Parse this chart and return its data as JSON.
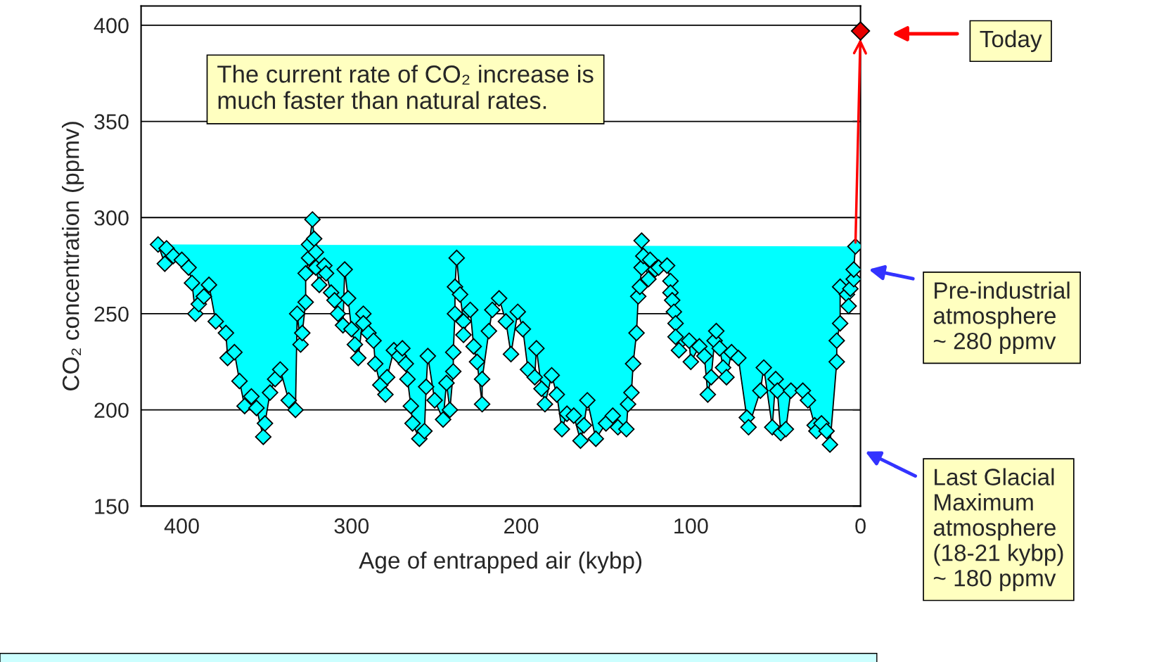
{
  "chart_data": {
    "type": "line",
    "xlabel": "Age of entrapped air (kybp)",
    "ylabel": "CO₂ concentration (ppmv)",
    "xlim": [
      424,
      0
    ],
    "xticks": [
      400,
      300,
      200,
      100,
      0
    ],
    "ylim": [
      150,
      410
    ],
    "yticks": [
      150,
      200,
      250,
      300,
      350,
      400
    ],
    "grid": "y",
    "marker": "diamond",
    "series": [
      {
        "color": "#00ffff",
        "x": [
          414,
          410,
          409,
          405,
          400,
          396,
          394,
          392,
          390,
          387,
          384,
          380,
          374,
          373,
          369,
          366,
          363,
          359,
          356,
          352,
          351,
          348,
          345,
          342,
          337,
          333,
          332,
          330,
          329,
          327,
          327,
          325,
          325,
          323,
          322,
          321,
          321,
          319,
          316,
          315,
          312,
          310,
          308,
          305,
          304,
          302,
          300,
          298,
          296,
          293,
          293,
          290,
          287,
          286,
          283,
          280,
          279,
          275,
          272,
          270,
          268,
          267,
          265,
          264,
          260,
          257,
          256,
          255,
          251,
          246,
          244,
          242,
          240,
          240,
          239,
          239,
          238,
          236,
          234,
          234,
          230,
          228,
          226,
          223,
          223,
          219,
          217,
          213,
          209,
          206,
          202,
          199,
          196,
          192,
          191,
          188,
          186,
          182,
          179,
          176,
          173,
          169,
          165,
          163,
          161,
          156,
          150,
          146,
          143,
          138,
          137,
          135,
          134,
          132,
          131,
          130,
          129,
          129,
          128,
          125,
          124,
          121,
          119,
          114,
          112,
          112,
          111,
          110,
          109,
          109,
          107,
          101,
          100,
          95,
          92,
          90,
          88,
          86,
          85,
          83,
          81,
          79,
          76,
          72,
          67,
          66,
          59,
          57,
          52,
          50,
          49,
          47,
          44,
          41,
          34,
          31,
          27,
          26,
          23,
          20,
          18,
          14,
          14,
          12,
          12,
          8,
          7,
          6,
          4,
          4,
          3
        ],
        "values": [
          286,
          276,
          284,
          280,
          278,
          274,
          266,
          250,
          255,
          259,
          265,
          246,
          240,
          227,
          230,
          215,
          202,
          207,
          201,
          186,
          193,
          209,
          216,
          221,
          205,
          200,
          250,
          234,
          240,
          256,
          271,
          279,
          286,
          299,
          289,
          282,
          274,
          265,
          275,
          271,
          261,
          257,
          250,
          244,
          273,
          258,
          242,
          234,
          227,
          250,
          245,
          240,
          236,
          224,
          213,
          208,
          217,
          231,
          228,
          232,
          224,
          216,
          202,
          193,
          185,
          189,
          212,
          228,
          205,
          195,
          214,
          200,
          220,
          230,
          250,
          264,
          279,
          260,
          246,
          239,
          252,
          233,
          225,
          203,
          216,
          241,
          252,
          258,
          246,
          229,
          251,
          242,
          221,
          217,
          232,
          211,
          203,
          218,
          208,
          190,
          198,
          197,
          184,
          192,
          205,
          185,
          193,
          197,
          191,
          190,
          203,
          209,
          224,
          240,
          259,
          264,
          274,
          288,
          280,
          268,
          278,
          273,
          274,
          275,
          267,
          261,
          257,
          251,
          245,
          238,
          231,
          236,
          225,
          233,
          228,
          208,
          217,
          236,
          241,
          232,
          222,
          217,
          230,
          227,
          196,
          191,
          210,
          222,
          191,
          216,
          210,
          188,
          190,
          210,
          210,
          205,
          192,
          189,
          193,
          189,
          182,
          225,
          236,
          245,
          264,
          260,
          254,
          263,
          268,
          273,
          285
        ]
      },
      {
        "type": "scatter",
        "color": "#e60000",
        "x": [
          0
        ],
        "values": [
          397
        ]
      }
    ],
    "annotations": [
      "The current rate of CO₂ increase is\nmuch faster than natural rates.",
      "Today",
      "Pre-industrial\natmosphere\n~ 280 ppmv",
      "Last Glacial\nMaximum\natmosphere\n(18-21 kybp)\n~ 180 ppmv"
    ]
  }
}
